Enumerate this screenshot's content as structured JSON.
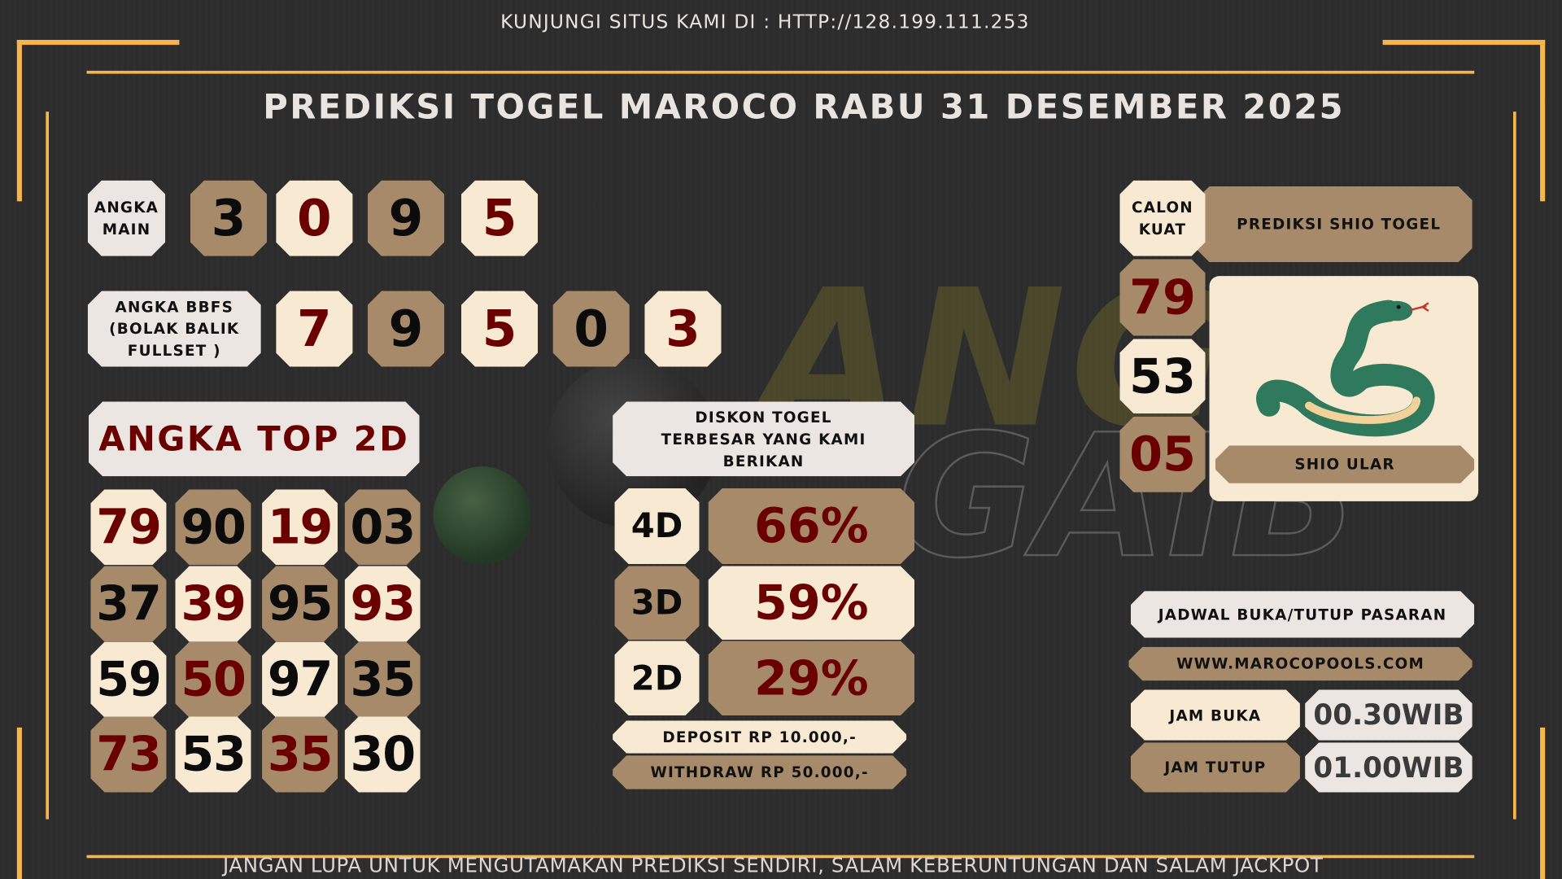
{
  "header": {
    "visit_text": "KUNJUNGI SITUS KAMI DI : HTTP://128.199.111.253",
    "title": "PREDIKSI TOGEL MAROCO RABU 31 DESEMBER 2025"
  },
  "watermark": {
    "line1": "ANGKA",
    "line2": "GAIB"
  },
  "angka_main": {
    "label": "ANGKA MAIN",
    "digits": [
      "3",
      "0",
      "9",
      "5"
    ]
  },
  "bbfs": {
    "label": "ANGKA BBFS (BOLAK BALIK FULLSET )",
    "digits": [
      "7",
      "9",
      "5",
      "0",
      "3"
    ]
  },
  "top2d": {
    "label": "ANGKA TOP 2D",
    "rows": [
      [
        "79",
        "90",
        "19",
        "03"
      ],
      [
        "37",
        "39",
        "95",
        "93"
      ],
      [
        "59",
        "50",
        "97",
        "35"
      ],
      [
        "73",
        "53",
        "35",
        "30"
      ]
    ]
  },
  "diskon": {
    "title": "DISKON TOGEL TERBESAR YANG KAMI BERIKAN",
    "rows": [
      {
        "type": "4D",
        "value": "66%"
      },
      {
        "type": "3D",
        "value": "59%"
      },
      {
        "type": "2D",
        "value": "29%"
      }
    ],
    "deposit": "DEPOSIT RP 10.000,-",
    "withdraw": "WITHDRAW RP 50.000,-"
  },
  "calon_kuat": {
    "label": "CALON KUAT",
    "numbers": [
      "79",
      "53",
      "05"
    ]
  },
  "shio": {
    "header": "PREDIKSI SHIO TOGEL",
    "name": "SHIO ULAR",
    "icon": "snake-icon"
  },
  "jadwal": {
    "title": "JADWAL BUKA/TUTUP PASARAN",
    "website": "WWW.MAROCOPOOLS.COM",
    "buka_label": "JAM BUKA",
    "buka_value": "00.30WIB",
    "tutup_label": "JAM TUTUP",
    "tutup_value": "01.00WIB"
  },
  "footer": {
    "text": "JANGAN LUPA UNTUK MENGUTAMAKAN PREDIKSI SENDIRI, SALAM KEBERUNTUNGAN DAN SALAM JACKPOT"
  },
  "colors": {
    "accent": "#f6b54c",
    "cream": "#f8e9d2",
    "tan": "#a68a69",
    "dark_red": "#6a0000",
    "background": "#2d2d2d"
  }
}
